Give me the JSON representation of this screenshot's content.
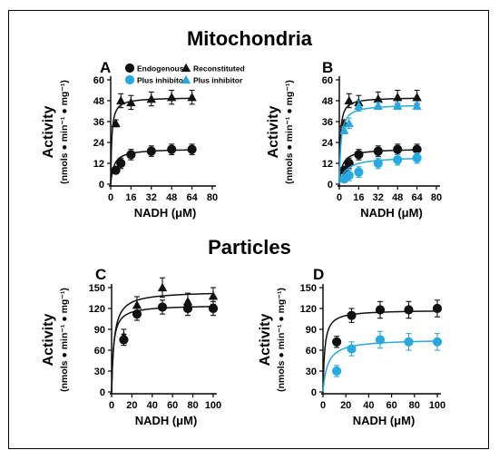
{
  "figure": {
    "section_top": "Mitochondria",
    "section_bottom": "Particles",
    "colors": {
      "black": "#111111",
      "blue": "#29a9df"
    }
  },
  "chart_data": [
    {
      "panel": "A",
      "type": "scatter",
      "xlabel": "NADH (μM)",
      "ylabel": "Activity",
      "ylabel_unit": "(nmols ● min⁻¹ ● mg⁻¹)",
      "xlim": [
        0,
        80
      ],
      "ylim": [
        0,
        60
      ],
      "xticks": [
        0,
        16,
        32,
        48,
        64,
        80
      ],
      "yticks": [
        0,
        12,
        24,
        36,
        48,
        60
      ],
      "legend": [
        {
          "label": "Endogenous",
          "marker": "circle",
          "color": "#111111"
        },
        {
          "label": "Plus inhibitor",
          "marker": "circle",
          "color": "#29a9df"
        },
        {
          "label": "Reconstituted",
          "marker": "triangle",
          "color": "#111111"
        },
        {
          "label": "Plus inhibitor",
          "marker": "triangle",
          "color": "#29a9df"
        }
      ],
      "series": [
        {
          "marker": "circle",
          "color": "#111111",
          "x": [
            4,
            8,
            16,
            32,
            48,
            64
          ],
          "y": [
            8,
            12,
            17,
            19,
            20,
            20
          ],
          "err": [
            2,
            3,
            3,
            3,
            3,
            3
          ],
          "fit": {
            "vmax": 20.5,
            "km": 2.5
          }
        },
        {
          "marker": "triangle",
          "color": "#111111",
          "x": [
            4,
            8,
            16,
            32,
            48,
            64
          ],
          "y": [
            35,
            48,
            47,
            49,
            50,
            50
          ],
          "err": [
            2,
            4,
            4,
            4,
            4,
            4
          ],
          "fit": {
            "vmax": 50,
            "km": 0.8
          }
        }
      ]
    },
    {
      "panel": "B",
      "type": "scatter",
      "xlabel": "NADH (μM)",
      "ylabel": "Activity",
      "ylabel_unit": "(nmols ● min⁻¹ ● mg⁻¹)",
      "xlim": [
        0,
        80
      ],
      "ylim": [
        0,
        60
      ],
      "xticks": [
        0,
        16,
        32,
        48,
        64,
        80
      ],
      "yticks": [
        0,
        12,
        24,
        36,
        48,
        60
      ],
      "series": [
        {
          "marker": "circle",
          "color": "#111111",
          "x": [
            4,
            8,
            16,
            32,
            48,
            64
          ],
          "y": [
            8,
            12,
            17,
            19,
            20,
            20
          ],
          "err": [
            2,
            3,
            3,
            3,
            3,
            3
          ],
          "fit": {
            "vmax": 20.5,
            "km": 2.5
          }
        },
        {
          "marker": "circle",
          "color": "#29a9df",
          "x": [
            4,
            8,
            16,
            32,
            48,
            64
          ],
          "y": [
            3,
            5,
            7,
            12,
            14,
            15
          ],
          "err": [
            2,
            3,
            3,
            3,
            3,
            3
          ],
          "fit": {
            "vmax": 16,
            "km": 5.5
          }
        },
        {
          "marker": "triangle",
          "color": "#111111",
          "x": [
            4,
            8,
            16,
            32,
            48,
            64
          ],
          "y": [
            35,
            48,
            47,
            49,
            50,
            50
          ],
          "err": [
            2,
            4,
            4,
            4,
            4,
            4
          ],
          "fit": {
            "vmax": 50,
            "km": 0.8
          }
        },
        {
          "marker": "triangle",
          "color": "#29a9df",
          "x": [
            4,
            8,
            16,
            32,
            48,
            64
          ],
          "y": [
            31,
            35,
            45,
            45,
            45,
            45
          ],
          "err": [
            2,
            3,
            3,
            2,
            2,
            2
          ],
          "fit": {
            "vmax": 46,
            "km": 1.3
          }
        }
      ]
    },
    {
      "panel": "C",
      "type": "scatter",
      "xlabel": "NADH (μM)",
      "ylabel": "Activity",
      "ylabel_unit": "(nmols ● min⁻¹ ● mg⁻¹)",
      "xlim": [
        0,
        100
      ],
      "ylim": [
        0,
        150
      ],
      "xticks": [
        0,
        20,
        40,
        60,
        80,
        100
      ],
      "yticks": [
        0,
        30,
        60,
        90,
        120,
        150
      ],
      "series": [
        {
          "marker": "circle",
          "color": "#111111",
          "x": [
            12,
            25,
            50,
            75,
            100
          ],
          "y": [
            75,
            112,
            122,
            120,
            120
          ],
          "err": [
            8,
            9,
            10,
            10,
            10
          ],
          "fit": {
            "vmax": 125,
            "km": 1.8
          }
        },
        {
          "marker": "triangle",
          "color": "#111111",
          "x": [
            12,
            25,
            50,
            75,
            100
          ],
          "y": [
            80,
            125,
            150,
            130,
            138
          ],
          "err": [
            10,
            12,
            14,
            12,
            12
          ],
          "fit": {
            "vmax": 145,
            "km": 2.5
          }
        }
      ]
    },
    {
      "panel": "D",
      "type": "scatter",
      "xlabel": "NADH (μM)",
      "ylabel": "Activity",
      "ylabel_unit": "(nmols ● min⁻¹ ● mg⁻¹)",
      "xlim": [
        0,
        100
      ],
      "ylim": [
        0,
        150
      ],
      "xticks": [
        0,
        20,
        40,
        60,
        80,
        100
      ],
      "yticks": [
        0,
        30,
        60,
        90,
        120,
        150
      ],
      "series": [
        {
          "marker": "circle",
          "color": "#111111",
          "x": [
            12,
            25,
            50,
            75,
            100
          ],
          "y": [
            72,
            110,
            118,
            118,
            120
          ],
          "err": [
            8,
            10,
            12,
            12,
            12
          ],
          "fit": {
            "vmax": 118,
            "km": 1.5
          }
        },
        {
          "marker": "circle",
          "color": "#29a9df",
          "x": [
            12,
            25,
            50,
            75,
            100
          ],
          "y": [
            30,
            62,
            75,
            72,
            72
          ],
          "err": [
            8,
            10,
            12,
            12,
            12
          ],
          "fit": {
            "vmax": 76,
            "km": 4
          }
        }
      ]
    }
  ]
}
